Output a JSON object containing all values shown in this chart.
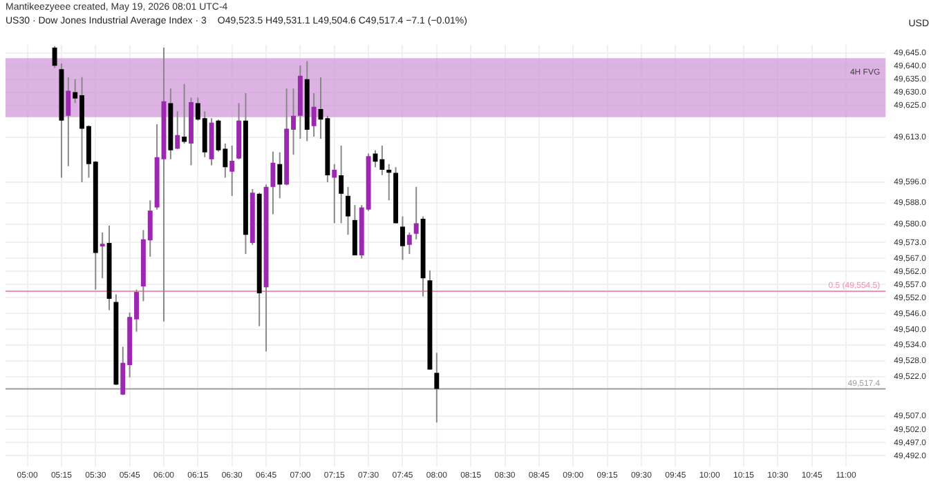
{
  "chart_data": {
    "type": "candlestick",
    "title": "US30 · Dow Jones Industrial Average Index · 3",
    "subtitle": "Mantikeezyeee created, May 19, 2026 08:01 UTC-4",
    "ylabel": "USD",
    "annotations": [
      "O49,523.5 H49,531.1 L49,504.6 C49,517.4 −7.1 (−0.01%)"
    ],
    "x": [
      5.2,
      5.25,
      5.3,
      5.35,
      5.4,
      5.45,
      5.5,
      5.55,
      5.6,
      5.65,
      5.7,
      5.75,
      5.8,
      5.85,
      5.9,
      5.95,
      6.0,
      6.05,
      6.1,
      6.15,
      6.2,
      6.25,
      6.3,
      6.35,
      6.4,
      6.45,
      6.5,
      6.55,
      6.6,
      6.65,
      6.7,
      6.75,
      6.8,
      6.85,
      6.9,
      6.95,
      7.0,
      7.05,
      7.1,
      7.15,
      7.2,
      7.25,
      7.3,
      7.35,
      7.4,
      7.45,
      7.5,
      7.55,
      7.6,
      7.65,
      7.7,
      7.75,
      7.8,
      7.85,
      7.9,
      7.95,
      8.0
    ],
    "ohlc": [
      [
        49647.0,
        49647.5,
        49639.3,
        49640.1
      ],
      [
        49638.8,
        49641.0,
        49597.6,
        49619.3
      ],
      [
        49621.1,
        49635.8,
        49602.0,
        49630.6
      ],
      [
        49630.1,
        49635.0,
        49626.0,
        49627.7
      ],
      [
        49628.9,
        49635.8,
        49595.9,
        49616.2
      ],
      [
        49617.2,
        49617.5,
        49597.6,
        49602.8
      ],
      [
        49603.7,
        49603.9,
        49555.1,
        49569.0
      ],
      [
        49571.5,
        49576.8,
        49559.4,
        49572.5
      ],
      [
        49572.8,
        49579.4,
        49547.3,
        49551.6
      ],
      [
        49550.4,
        49553.3,
        49518.8,
        49519.0
      ],
      [
        49515.2,
        49533.4,
        49515.0,
        49527.3
      ],
      [
        49526.4,
        49546.4,
        49521.8,
        49544.7
      ],
      [
        49543.8,
        49555.1,
        49539.1,
        49554.2
      ],
      [
        49556.3,
        49577.7,
        49550.7,
        49574.2
      ],
      [
        49573.8,
        49589.0,
        49567.6,
        49585.1
      ],
      [
        49586.3,
        49617.9,
        49585.5,
        49605.4
      ],
      [
        49604.6,
        49647.0,
        49543.0,
        49626.6
      ],
      [
        49625.9,
        49631.5,
        49604.6,
        49608.0
      ],
      [
        49608.6,
        49622.8,
        49608.4,
        49613.8
      ],
      [
        49613.2,
        49633.2,
        49610.6,
        49611.2
      ],
      [
        49610.6,
        49628.0,
        49602.3,
        49626.3
      ],
      [
        49625.9,
        49628.0,
        49619.3,
        49619.7
      ],
      [
        49620.2,
        49622.8,
        49605.4,
        49607.2
      ],
      [
        49604.6,
        49620.2,
        49602.3,
        49618.5
      ],
      [
        49619.3,
        49619.7,
        49607.5,
        49608.0
      ],
      [
        49608.6,
        49610.6,
        49597.6,
        49601.6
      ],
      [
        49599.9,
        49609.8,
        49590.7,
        49604.0
      ],
      [
        49604.9,
        49625.9,
        49604.6,
        49619.3
      ],
      [
        49619.3,
        49629.7,
        49568.6,
        49575.9
      ],
      [
        49572.8,
        49593.3,
        49572.1,
        49591.9
      ],
      [
        49591.5,
        49591.9,
        49541.2,
        49553.7
      ],
      [
        49556.0,
        49595.0,
        49531.6,
        49594.1
      ],
      [
        49594.1,
        49607.5,
        49583.7,
        49603.3
      ],
      [
        49602.8,
        49607.2,
        49589.8,
        49595.0
      ],
      [
        49595.0,
        49631.5,
        49594.7,
        49616.2
      ],
      [
        49615.8,
        49631.5,
        49606.3,
        49621.1
      ],
      [
        49621.1,
        49640.2,
        49612.4,
        49636.3
      ],
      [
        49635.0,
        49641.9,
        49611.5,
        49615.8
      ],
      [
        49617.2,
        49629.7,
        49613.2,
        49624.5
      ],
      [
        49623.7,
        49635.8,
        49612.4,
        49619.7
      ],
      [
        49620.2,
        49621.1,
        49595.9,
        49598.5
      ],
      [
        49597.6,
        49602.8,
        49580.3,
        49600.6
      ],
      [
        49598.5,
        49609.8,
        49580.3,
        49591.5
      ],
      [
        49590.7,
        49594.1,
        49575.9,
        49582.9
      ],
      [
        49581.5,
        49587.2,
        49568.1,
        49568.1
      ],
      [
        49568.1,
        49587.2,
        49566.9,
        49586.3
      ],
      [
        49585.5,
        49606.8,
        49585.0,
        49605.8
      ],
      [
        49606.8,
        49608.0,
        49601.6,
        49603.7
      ],
      [
        49604.6,
        49609.8,
        49598.6,
        49600.6
      ],
      [
        49600.6,
        49602.8,
        49589.0,
        49599.5
      ],
      [
        49599.4,
        49601.6,
        49580.3,
        49580.3
      ],
      [
        49579.0,
        49582.9,
        49566.4,
        49571.6
      ],
      [
        49572.1,
        49576.8,
        49568.6,
        49575.9
      ],
      [
        49576.3,
        49594.1,
        49574.2,
        49580.3
      ],
      [
        49582.0,
        49582.9,
        49552.5,
        49559.4
      ],
      [
        49558.6,
        49562.4,
        49524.7,
        49524.7
      ],
      [
        49523.5,
        49531.1,
        49504.6,
        49517.4
      ]
    ],
    "colors": [
      "#000000",
      "#000000",
      "#9c27b0",
      "#000000",
      "#000000",
      "#000000",
      "#000000",
      "#9c27b0",
      "#000000",
      "#000000",
      "#9c27b0",
      "#9c27b0",
      "#9c27b0",
      "#9c27b0",
      "#9c27b0",
      "#9c27b0",
      "#9c27b0",
      "#000000",
      "#9c27b0",
      "#000000",
      "#9c27b0",
      "#000000",
      "#000000",
      "#9c27b0",
      "#000000",
      "#000000",
      "#9c27b0",
      "#9c27b0",
      "#000000",
      "#9c27b0",
      "#000000",
      "#9c27b0",
      "#9c27b0",
      "#000000",
      "#9c27b0",
      "#9c27b0",
      "#9c27b0",
      "#000000",
      "#9c27b0",
      "#000000",
      "#000000",
      "#9c27b0",
      "#000000",
      "#000000",
      "#000000",
      "#9c27b0",
      "#9c27b0",
      "#000000",
      "#000000",
      "#000000",
      "#000000",
      "#000000",
      "#9c27b0",
      "#9c27b0",
      "#000000",
      "#000000",
      "#000000"
    ],
    "xlim": [
      4.84,
      11.29
    ],
    "ylim": [
      49488,
      49648
    ],
    "xticks": [
      {
        "value": 5,
        "label": "05:00"
      },
      {
        "value": 5.25,
        "label": "05:15"
      },
      {
        "value": 5.5,
        "label": "05:30"
      },
      {
        "value": 5.75,
        "label": "05:45"
      },
      {
        "value": 6,
        "label": "06:00"
      },
      {
        "value": 6.25,
        "label": "06:15"
      },
      {
        "value": 6.5,
        "label": "06:30"
      },
      {
        "value": 6.75,
        "label": "06:45"
      },
      {
        "value": 7,
        "label": "07:00"
      },
      {
        "value": 7.25,
        "label": "07:15"
      },
      {
        "value": 7.5,
        "label": "07:30"
      },
      {
        "value": 7.75,
        "label": "07:45"
      },
      {
        "value": 8,
        "label": "08:00"
      },
      {
        "value": 8.25,
        "label": "08:15"
      },
      {
        "value": 8.5,
        "label": "08:30"
      },
      {
        "value": 8.75,
        "label": "08:45"
      },
      {
        "value": 9,
        "label": "09:00"
      },
      {
        "value": 9.25,
        "label": "09:15"
      },
      {
        "value": 9.5,
        "label": "09:30"
      },
      {
        "value": 9.75,
        "label": "09:45"
      },
      {
        "value": 10,
        "label": "10:00"
      },
      {
        "value": 10.25,
        "label": "10:15"
      },
      {
        "value": 10.5,
        "label": "10:30"
      },
      {
        "value": 10.75,
        "label": "10:45"
      },
      {
        "value": 11,
        "label": "11:00"
      }
    ],
    "yticks": [
      {
        "value": 49645,
        "label": "49,645.0"
      },
      {
        "value": 49640,
        "label": "49,640.0"
      },
      {
        "value": 49635,
        "label": "49,635.0"
      },
      {
        "value": 49630,
        "label": "49,630.0"
      },
      {
        "value": 49625,
        "label": "49,625.0"
      },
      {
        "value": 49613,
        "label": "49,613.0"
      },
      {
        "value": 49596,
        "label": "49,596.0"
      },
      {
        "value": 49588,
        "label": "49,588.0"
      },
      {
        "value": 49580,
        "label": "49,580.0"
      },
      {
        "value": 49573,
        "label": "49,573.0"
      },
      {
        "value": 49567,
        "label": "49,567.0"
      },
      {
        "value": 49562,
        "label": "49,562.0"
      },
      {
        "value": 49557,
        "label": "49,557.0"
      },
      {
        "value": 49552,
        "label": "49,552.0"
      },
      {
        "value": 49546,
        "label": "49,546.0"
      },
      {
        "value": 49540,
        "label": "49,540.0"
      },
      {
        "value": 49534,
        "label": "49,534.0"
      },
      {
        "value": 49528,
        "label": "49,528.0"
      },
      {
        "value": 49522,
        "label": "49,522.0"
      },
      {
        "value": 49507,
        "label": "49,507.0"
      },
      {
        "value": 49502,
        "label": "49,502.0"
      },
      {
        "value": 49497,
        "label": "49,497.0"
      },
      {
        "value": 49492,
        "label": "49,492.0"
      }
    ],
    "bands": [
      {
        "axis": "y",
        "from": 49620.6,
        "to": 49643,
        "label": "4H FVG",
        "color": "#ce93d8"
      }
    ],
    "ref_lines": [
      {
        "axis": "y",
        "value": 49554.5,
        "label": "0.5 (49,554.5)",
        "color": "#f48fb1"
      },
      {
        "axis": "y",
        "value": 49517.4,
        "label": "49,517.4",
        "color": "#9e9e9e"
      }
    ],
    "grid": true
  }
}
